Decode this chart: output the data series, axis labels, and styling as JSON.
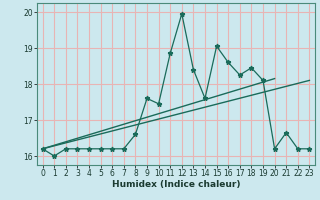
{
  "xlabel": "Humidex (Indice chaleur)",
  "bg_color": "#cce8ee",
  "grid_color": "#e8b4b4",
  "line_color": "#1a6b5a",
  "xlim": [
    -0.5,
    23.5
  ],
  "ylim": [
    15.75,
    20.25
  ],
  "xticks": [
    0,
    1,
    2,
    3,
    4,
    5,
    6,
    7,
    8,
    9,
    10,
    11,
    12,
    13,
    14,
    15,
    16,
    17,
    18,
    19,
    20,
    21,
    22,
    23
  ],
  "yticks": [
    16,
    17,
    18,
    19,
    20
  ],
  "main_data": {
    "x": [
      0,
      1,
      2,
      3,
      4,
      5,
      6,
      7,
      8,
      9,
      10,
      11,
      12,
      13,
      14,
      15,
      16,
      17,
      18,
      19,
      20,
      21,
      22,
      23
    ],
    "y": [
      16.2,
      16.0,
      16.2,
      16.2,
      16.2,
      16.2,
      16.2,
      16.2,
      16.6,
      17.6,
      17.45,
      18.85,
      19.95,
      18.4,
      17.6,
      19.05,
      18.6,
      18.25,
      18.45,
      18.1,
      16.2,
      16.65,
      16.2,
      16.2
    ]
  },
  "line1": {
    "x": [
      0,
      20
    ],
    "y": [
      16.2,
      18.15
    ]
  },
  "line2": {
    "x": [
      0,
      23
    ],
    "y": [
      16.2,
      18.1
    ]
  }
}
